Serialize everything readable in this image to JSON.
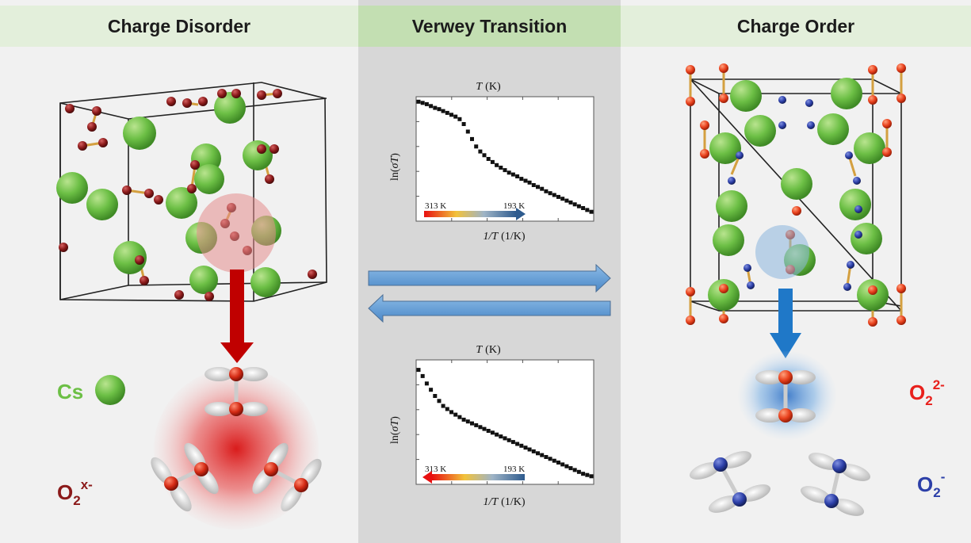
{
  "headers": {
    "left": "Charge Disorder",
    "middle": "Verwey Transition",
    "right": "Charge Order"
  },
  "legend": {
    "cs_label": "Cs",
    "o2x_base": "O",
    "o2x_sub": "2",
    "o2x_sup": "x-",
    "o2_2minus_base": "O",
    "o2_2minus_sub": "2",
    "o2_2minus_sup": "2-",
    "o2_minus_base": "O",
    "o2_minus_sub": "2",
    "o2_minus_sup": "-"
  },
  "colors": {
    "cs_green": "#6cbf45",
    "o_dark_red": "#8b1a1a",
    "o_red": "#e8401c",
    "o_blue": "#2c3fa8",
    "arrow_blue": "#5b9bd5",
    "arrow_red": "#c00000",
    "mid_bg": "#d7d7d7"
  },
  "chart_data": [
    {
      "type": "scatter",
      "title_var": "T",
      "title_unit": "(K)",
      "ylabel_pre": "ln(",
      "ylabel_var": "σT",
      "ylabel_post": ")",
      "xlabel_var": "1/T",
      "xlabel_unit": "(1/K)",
      "temp_start": "313 K",
      "temp_end": "193 K",
      "temp_arrow": "right",
      "xlim": [
        0,
        1
      ],
      "ylim": [
        0,
        1
      ],
      "y": [
        0.96,
        0.95,
        0.94,
        0.925,
        0.91,
        0.9,
        0.885,
        0.87,
        0.855,
        0.84,
        0.82,
        0.78,
        0.72,
        0.66,
        0.6,
        0.56,
        0.53,
        0.5,
        0.475,
        0.45,
        0.43,
        0.41,
        0.39,
        0.375,
        0.36,
        0.34,
        0.325,
        0.31,
        0.29,
        0.275,
        0.26,
        0.24,
        0.225,
        0.21,
        0.195,
        0.18,
        0.165,
        0.15,
        0.135,
        0.12,
        0.105,
        0.09,
        0.075
      ]
    },
    {
      "type": "scatter",
      "title_var": "T",
      "title_unit": "(K)",
      "ylabel_pre": "ln(",
      "ylabel_var": "σT",
      "ylabel_post": ")",
      "xlabel_var": "1/T",
      "xlabel_unit": "(1/K)",
      "temp_start": "313 K",
      "temp_end": "193 K",
      "temp_arrow": "left",
      "xlim": [
        0,
        1
      ],
      "ylim": [
        0,
        1
      ],
      "y": [
        0.92,
        0.87,
        0.81,
        0.76,
        0.71,
        0.67,
        0.63,
        0.605,
        0.58,
        0.56,
        0.54,
        0.52,
        0.505,
        0.49,
        0.475,
        0.46,
        0.445,
        0.43,
        0.415,
        0.4,
        0.385,
        0.37,
        0.355,
        0.34,
        0.325,
        0.31,
        0.295,
        0.28,
        0.265,
        0.25,
        0.235,
        0.22,
        0.205,
        0.19,
        0.175,
        0.16,
        0.145,
        0.13,
        0.115,
        0.1,
        0.085,
        0.075,
        0.065
      ]
    }
  ]
}
